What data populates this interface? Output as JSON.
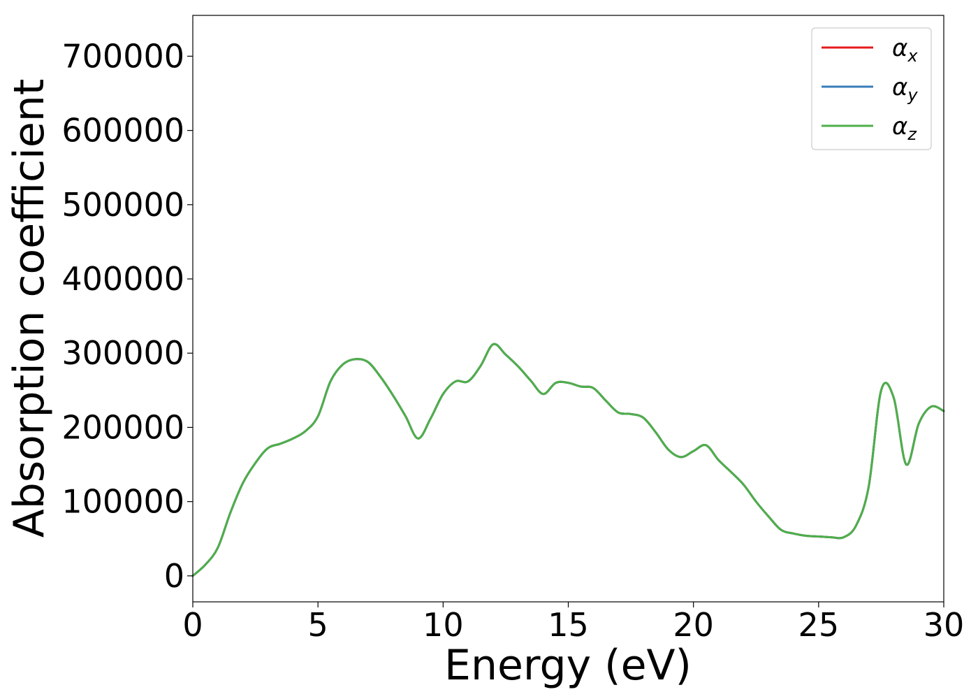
{
  "chart_data": {
    "type": "line",
    "title": "",
    "xlabel": "Energy (eV)",
    "ylabel": "Absorption coefficient",
    "xlim": [
      0,
      30
    ],
    "ylim": [
      -35000,
      755000
    ],
    "xticks": [
      0,
      5,
      10,
      15,
      20,
      25,
      30
    ],
    "xtick_labels": [
      "0",
      "5",
      "10",
      "15",
      "20",
      "25",
      "30"
    ],
    "yticks": [
      0,
      100000,
      200000,
      300000,
      400000,
      500000,
      600000,
      700000
    ],
    "ytick_labels": [
      "0",
      "100000",
      "200000",
      "300000",
      "400000",
      "500000",
      "600000",
      "700000"
    ],
    "grid": false,
    "legend_position": "top-right",
    "x": [
      0,
      0.5,
      1,
      1.5,
      2,
      2.5,
      3,
      3.5,
      4,
      4.5,
      5,
      5.5,
      6,
      6.5,
      7,
      7.5,
      8,
      8.5,
      9,
      9.5,
      10,
      10.5,
      11,
      11.5,
      12,
      12.5,
      13,
      13.5,
      14,
      14.5,
      15,
      15.5,
      16,
      16.5,
      17,
      17.5,
      18,
      18.5,
      19,
      19.5,
      20,
      20.5,
      21,
      21.5,
      22,
      22.5,
      23,
      23.5,
      24,
      24.5,
      25,
      25.5,
      26,
      26.5,
      27,
      27.5,
      28,
      28.5,
      29,
      29.5,
      30
    ],
    "series": [
      {
        "name": "αx",
        "label": "α",
        "subscript": "x",
        "color": "#e41a1c",
        "values": [
          0,
          15000,
          38000,
          85000,
          125000,
          152000,
          172000,
          178000,
          185000,
          195000,
          215000,
          262000,
          285000,
          292000,
          288000,
          268000,
          243000,
          215000,
          185000,
          212000,
          245000,
          262000,
          262000,
          283000,
          312000,
          298000,
          282000,
          263000,
          245000,
          260000,
          260000,
          255000,
          253000,
          236000,
          220000,
          218000,
          213000,
          193000,
          170000,
          160000,
          168000,
          176000,
          156000,
          140000,
          123000,
          100000,
          80000,
          62000,
          57000,
          54000,
          53000,
          52000,
          52000,
          68000,
          120000,
          250000,
          240000,
          150000,
          205000,
          228000,
          222000
        ]
      },
      {
        "name": "αy",
        "label": "α",
        "subscript": "y",
        "color": "#377eb8",
        "values": [
          0,
          15000,
          38000,
          85000,
          125000,
          152000,
          172000,
          178000,
          185000,
          195000,
          215000,
          262000,
          285000,
          292000,
          288000,
          268000,
          243000,
          215000,
          185000,
          212000,
          245000,
          262000,
          262000,
          283000,
          312000,
          298000,
          282000,
          263000,
          245000,
          260000,
          260000,
          255000,
          253000,
          236000,
          220000,
          218000,
          213000,
          193000,
          170000,
          160000,
          168000,
          176000,
          156000,
          140000,
          123000,
          100000,
          80000,
          62000,
          57000,
          54000,
          53000,
          52000,
          52000,
          68000,
          120000,
          250000,
          240000,
          150000,
          205000,
          228000,
          222000
        ]
      },
      {
        "name": "αz",
        "label": "α",
        "subscript": "z",
        "color": "#4daf4a",
        "values": [
          0,
          15000,
          38000,
          85000,
          125000,
          152000,
          172000,
          178000,
          185000,
          195000,
          215000,
          262000,
          285000,
          292000,
          288000,
          268000,
          243000,
          215000,
          185000,
          212000,
          245000,
          262000,
          262000,
          283000,
          312000,
          298000,
          282000,
          263000,
          245000,
          260000,
          260000,
          255000,
          253000,
          236000,
          220000,
          218000,
          213000,
          193000,
          170000,
          160000,
          168000,
          176000,
          156000,
          140000,
          123000,
          100000,
          80000,
          62000,
          57000,
          54000,
          53000,
          52000,
          52000,
          68000,
          120000,
          250000,
          240000,
          150000,
          205000,
          228000,
          222000
        ]
      }
    ]
  }
}
